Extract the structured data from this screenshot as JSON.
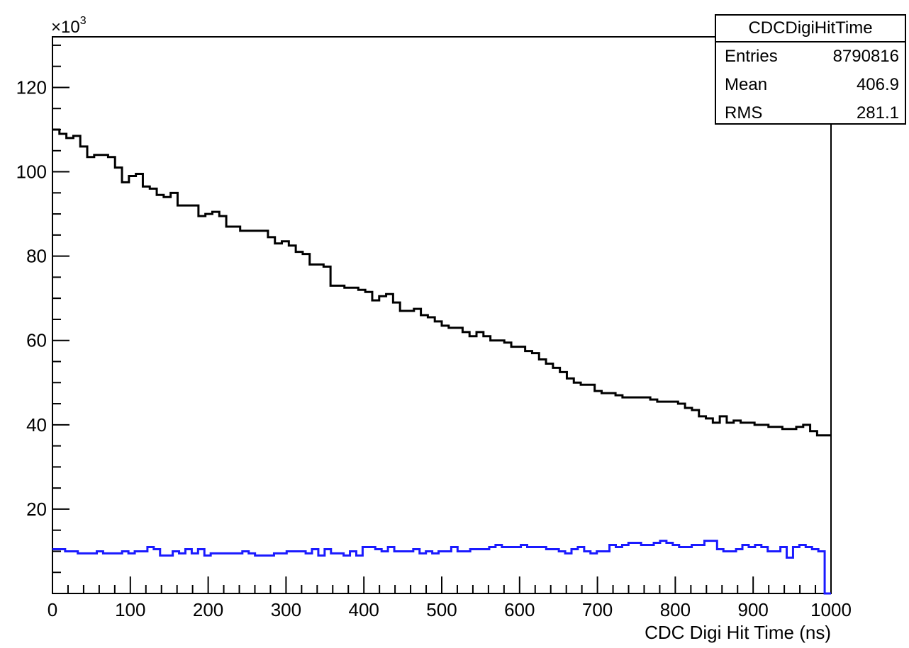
{
  "chart_data": {
    "type": "line",
    "title": "",
    "xlabel": "CDC Digi Hit Time (ns)",
    "ylabel": "",
    "y_multiplier_label": "×10",
    "y_multiplier_exp": "3",
    "xlim": [
      0,
      1000
    ],
    "ylim": [
      0,
      132
    ],
    "x_ticks": [
      0,
      100,
      200,
      300,
      400,
      500,
      600,
      700,
      800,
      900,
      1000
    ],
    "y_ticks": [
      20,
      40,
      60,
      80,
      100,
      120
    ],
    "bin_width": 10,
    "grid": false,
    "series": [
      {
        "color": "#000000",
        "values": [
          110,
          109,
          108,
          108.5,
          106,
          103.5,
          104,
          104,
          103.5,
          101,
          97.5,
          99,
          99.5,
          96.5,
          96,
          94.5,
          94,
          95,
          92,
          92,
          92,
          89.5,
          90,
          90.5,
          89.5,
          87,
          87,
          86,
          86,
          86,
          86,
          84.5,
          83,
          83.5,
          82.5,
          81,
          80.5,
          78,
          78,
          77.5,
          73,
          73,
          72.5,
          72.5,
          72,
          71.5,
          69.5,
          70.5,
          71,
          69,
          67,
          67,
          67.5,
          66,
          65.5,
          64.5,
          63.5,
          63,
          63,
          62,
          61,
          62,
          61,
          60,
          60,
          59.5,
          58.5,
          58.5,
          57.5,
          57,
          55.5,
          54.5,
          53.5,
          52.5,
          51,
          50,
          49.5,
          49.5,
          48,
          47.5,
          47.5,
          47,
          46.5,
          46.5,
          46.5,
          46.5,
          46,
          45.5,
          45.5,
          45.5,
          45,
          44,
          43.5,
          42,
          41.5,
          40.5,
          42,
          40.5,
          41,
          40.5,
          40.5,
          40,
          40,
          39.5,
          39.5,
          39,
          39,
          39.5,
          40,
          38.5,
          37.5,
          37.5
        ],
        "name": ""
      },
      {
        "color": "#1a1aff",
        "values": [
          10.5,
          10.5,
          10,
          10,
          9.5,
          9.5,
          9.5,
          10,
          9.5,
          9.5,
          9.5,
          10,
          9.5,
          10,
          10,
          11,
          10.5,
          9,
          9,
          10,
          9.5,
          10.5,
          9.5,
          10.5,
          9,
          9.5,
          9.5,
          9.5,
          9.5,
          9.5,
          10,
          9.5,
          9,
          9,
          9,
          9.5,
          9.5,
          10,
          10,
          10,
          9.5,
          10.5,
          9,
          10.5,
          9.5,
          9.5,
          9,
          10,
          9,
          11,
          11,
          10.5,
          10,
          11,
          10,
          10,
          10,
          10.5,
          9.5,
          10,
          9.5,
          10,
          10,
          11,
          10,
          10,
          10.5,
          10.5,
          10.5,
          11,
          11.5,
          11,
          11,
          11,
          11.5,
          11,
          11,
          11,
          10.5,
          10.5,
          10,
          9.5,
          10.5,
          11,
          10,
          9.5,
          10,
          10,
          11.5,
          11,
          11.5,
          12,
          12,
          11.5,
          11.5,
          12,
          12.5,
          12,
          11.5,
          11,
          11,
          11.5,
          11.5,
          12.5,
          12.5,
          10.5,
          10,
          10,
          10.5,
          11.5,
          11,
          11.5,
          11,
          10,
          10,
          11,
          8.5,
          11,
          11.5,
          11,
          10.5,
          10,
          0
        ],
        "name": ""
      }
    ]
  },
  "stats": {
    "title": "CDCDigiHitTime",
    "rows": [
      {
        "label": "Entries",
        "value": "8790816"
      },
      {
        "label": "Mean",
        "value": "406.9"
      },
      {
        "label": "RMS",
        "value": "281.1"
      }
    ]
  }
}
